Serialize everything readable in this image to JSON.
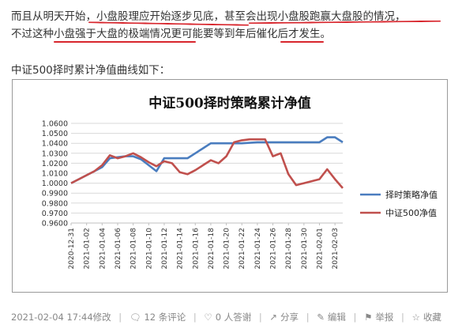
{
  "article": {
    "line1": "而且从明天开始，小盘股理应开始逐步见底，甚至会出现小盘股跑赢大盘股的情况，",
    "line2": "不过这种小盘强于大盘的极端情况更可能要等到年后催化后才发生。",
    "line3": "中证500择时累计净值曲线如下："
  },
  "chart_data": {
    "type": "line",
    "title": "中证500择时策略累计净值",
    "xlabel": "",
    "ylabel": "",
    "ylim": [
      0.96,
      1.06
    ],
    "yticks": [
      "1.0600",
      "1.0500",
      "1.0400",
      "1.0300",
      "1.0200",
      "1.0100",
      "1.0000",
      "0.9900",
      "0.9800",
      "0.9700",
      "0.9600"
    ],
    "x": [
      "2020-12-31",
      "2021-01-01",
      "2021-01-02",
      "2021-01-03",
      "2021-01-04",
      "2021-01-05",
      "2021-01-06",
      "2021-01-07",
      "2021-01-08",
      "2021-01-09",
      "2021-01-10",
      "2021-01-11",
      "2021-01-12",
      "2021-01-13",
      "2021-01-14",
      "2021-01-15",
      "2021-01-16",
      "2021-01-17",
      "2021-01-18",
      "2021-01-19",
      "2021-01-20",
      "2021-01-21",
      "2021-01-22",
      "2021-01-23",
      "2021-01-24",
      "2021-01-25",
      "2021-01-26",
      "2021-01-27",
      "2021-01-28",
      "2021-01-29",
      "2021-01-30",
      "2021-01-31",
      "2021-02-01",
      "2021-02-02",
      "2021-02-03",
      "2021-02-04"
    ],
    "xticks": [
      "2020-12-31",
      "2021-01-02",
      "2021-01-04",
      "2021-01-06",
      "2021-01-08",
      "2021-01-10",
      "2021-01-12",
      "2021-01-14",
      "2021-01-16",
      "2021-01-18",
      "2021-01-20",
      "2021-01-22",
      "2021-01-24",
      "2021-01-26",
      "2021-01-28",
      "2021-01-30",
      "2021-02-01",
      "2021-02-03"
    ],
    "legend_position": "right",
    "series": [
      {
        "name": "择时策略净值",
        "color": "#4a7dbf",
        "values": [
          1.0,
          1.004,
          1.008,
          1.012,
          1.016,
          1.025,
          1.026,
          1.027,
          1.027,
          1.024,
          1.018,
          1.012,
          1.025,
          1.025,
          1.025,
          1.025,
          1.03,
          1.035,
          1.04,
          1.04,
          1.04,
          1.04,
          1.04,
          1.0405,
          1.041,
          1.041,
          1.041,
          1.041,
          1.041,
          1.041,
          1.041,
          1.041,
          1.041,
          1.046,
          1.046,
          1.041
        ]
      },
      {
        "name": "中证500净值",
        "color": "#c0504d",
        "values": [
          1.0,
          1.004,
          1.008,
          1.012,
          1.018,
          1.028,
          1.025,
          1.027,
          1.03,
          1.026,
          1.021,
          1.017,
          1.022,
          1.02,
          1.011,
          1.009,
          1.013,
          1.018,
          1.023,
          1.02,
          1.027,
          1.041,
          1.043,
          1.044,
          1.044,
          1.044,
          1.027,
          1.03,
          1.009,
          0.998,
          1.0,
          1.002,
          1.004,
          1.014,
          1.004,
          0.995
        ]
      }
    ]
  },
  "footer": {
    "timestamp": "2021-02-04 17:44修改",
    "comments": "12 条评论",
    "answers": "0 人答谢",
    "share": "分享",
    "edit": "编辑",
    "report": "举报",
    "favorite": "收藏"
  },
  "colors": {
    "accent_underline": "#d8262d"
  }
}
